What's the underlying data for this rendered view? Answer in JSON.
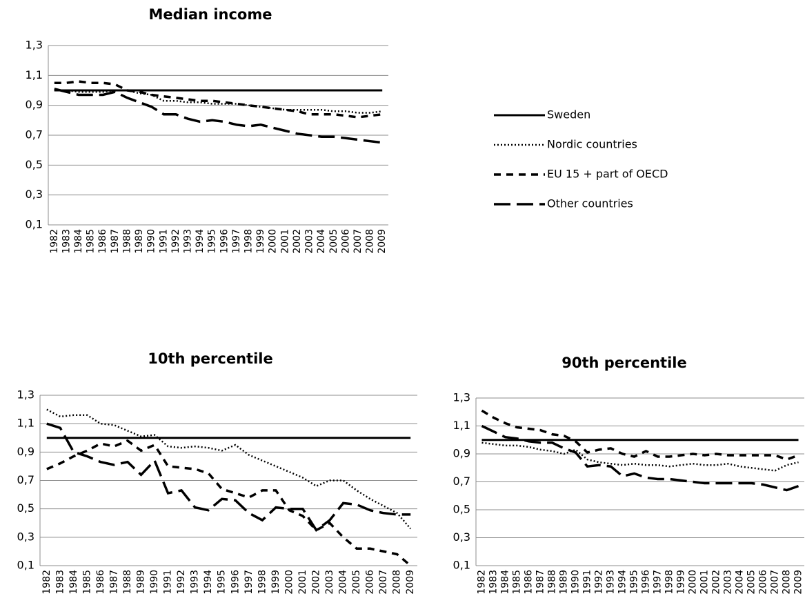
{
  "chart_data": [
    {
      "type": "line",
      "title": "Median income",
      "legend": "right",
      "grid": true,
      "categories": [
        "1982",
        "1983",
        "1984",
        "1985",
        "1986",
        "1987",
        "1988",
        "1989",
        "1990",
        "1991",
        "1992",
        "1993",
        "1994",
        "1995",
        "1996",
        "1997",
        "1998",
        "1999",
        "2000",
        "2001",
        "2002",
        "2003",
        "2004",
        "2005",
        "2006",
        "2007",
        "2008",
        "2009"
      ],
      "ylim": [
        0.1,
        1.3
      ],
      "yticks": [
        {
          "value": 0.1,
          "label": "0,1"
        },
        {
          "value": 0.3,
          "label": "0,3"
        },
        {
          "value": 0.5,
          "label": "0,5"
        },
        {
          "value": 0.7,
          "label": "0,7"
        },
        {
          "value": 0.9,
          "label": "0,9"
        },
        {
          "value": 1.1,
          "label": "1,1"
        },
        {
          "value": 1.3,
          "label": "1,3"
        }
      ],
      "series": [
        {
          "name": "Sweden",
          "color": "#000000",
          "dash": "solid",
          "values": [
            1,
            1,
            1,
            1,
            1,
            1,
            1,
            1,
            1,
            1,
            1,
            1,
            1,
            1,
            1,
            1,
            1,
            1,
            1,
            1,
            1,
            1,
            1,
            1,
            1,
            1,
            1,
            1
          ]
        },
        {
          "name": "Nordic countries",
          "color": "#000000",
          "dash": "dotted",
          "values": [
            1.0,
            1.0,
            0.99,
            0.99,
            0.99,
            1.0,
            1.0,
            0.98,
            0.97,
            0.93,
            0.93,
            0.92,
            0.92,
            0.91,
            0.91,
            0.91,
            0.9,
            0.89,
            0.88,
            0.87,
            0.87,
            0.87,
            0.87,
            0.86,
            0.86,
            0.85,
            0.85,
            0.86
          ]
        },
        {
          "name": "EU 15 + part of OECD",
          "color": "#000000",
          "dash": "dashed",
          "values": [
            1.05,
            1.05,
            1.06,
            1.05,
            1.05,
            1.04,
            1.0,
            0.99,
            0.97,
            0.96,
            0.95,
            0.94,
            0.93,
            0.93,
            0.92,
            0.91,
            0.9,
            0.89,
            0.88,
            0.87,
            0.86,
            0.84,
            0.84,
            0.84,
            0.83,
            0.82,
            0.83,
            0.84
          ]
        },
        {
          "name": "Other countries",
          "color": "#000000",
          "dash": "longdash",
          "values": [
            1.01,
            0.99,
            0.97,
            0.97,
            0.97,
            0.99,
            0.95,
            0.92,
            0.89,
            0.84,
            0.84,
            0.81,
            0.79,
            0.8,
            0.79,
            0.77,
            0.76,
            0.77,
            0.75,
            0.73,
            0.71,
            0.7,
            0.69,
            0.69,
            0.68,
            0.67,
            0.66,
            0.65
          ]
        }
      ]
    },
    {
      "type": "line",
      "title": "10th percentile",
      "grid": true,
      "categories": [
        "1982",
        "1983",
        "1984",
        "1985",
        "1986",
        "1987",
        "1988",
        "1989",
        "1990",
        "1991",
        "1992",
        "1993",
        "1994",
        "1995",
        "1996",
        "1997",
        "1998",
        "1999",
        "2000",
        "2001",
        "2002",
        "2003",
        "2004",
        "2005",
        "2006",
        "2007",
        "2008",
        "2009"
      ],
      "ylim": [
        0.1,
        1.3
      ],
      "yticks": [
        {
          "value": 0.1,
          "label": "0,1"
        },
        {
          "value": 0.3,
          "label": "0,3"
        },
        {
          "value": 0.5,
          "label": "0,5"
        },
        {
          "value": 0.7,
          "label": "0,7"
        },
        {
          "value": 0.9,
          "label": "0,9"
        },
        {
          "value": 1.1,
          "label": "1,1"
        },
        {
          "value": 1.3,
          "label": "1,3"
        }
      ],
      "series": [
        {
          "color": "#000000",
          "dash": "solid",
          "values": [
            1,
            1,
            1,
            1,
            1,
            1,
            1,
            1,
            1,
            1,
            1,
            1,
            1,
            1,
            1,
            1,
            1,
            1,
            1,
            1,
            1,
            1,
            1,
            1,
            1,
            1,
            1,
            1
          ]
        },
        {
          "color": "#000000",
          "dash": "dotted",
          "values": [
            1.2,
            1.15,
            1.16,
            1.16,
            1.1,
            1.09,
            1.05,
            1.01,
            1.02,
            0.94,
            0.93,
            0.94,
            0.93,
            0.91,
            0.95,
            0.88,
            0.84,
            0.8,
            0.76,
            0.72,
            0.66,
            0.7,
            0.7,
            0.63,
            0.57,
            0.52,
            0.47,
            0.36
          ]
        },
        {
          "color": "#000000",
          "dash": "dashed",
          "values": [
            0.78,
            0.82,
            0.87,
            0.91,
            0.96,
            0.94,
            0.98,
            0.91,
            0.95,
            0.8,
            0.79,
            0.78,
            0.75,
            0.64,
            0.61,
            0.58,
            0.63,
            0.63,
            0.49,
            0.45,
            0.35,
            0.4,
            0.3,
            0.22,
            0.22,
            0.2,
            0.18,
            0.1
          ]
        },
        {
          "color": "#000000",
          "dash": "longdash",
          "values": [
            1.1,
            1.07,
            0.9,
            0.87,
            0.83,
            0.81,
            0.83,
            0.74,
            0.84,
            0.61,
            0.63,
            0.51,
            0.49,
            0.57,
            0.56,
            0.47,
            0.42,
            0.51,
            0.5,
            0.5,
            0.35,
            0.42,
            0.54,
            0.53,
            0.49,
            0.47,
            0.46,
            0.46
          ]
        }
      ]
    },
    {
      "type": "line",
      "title": "90th percentile",
      "grid": true,
      "categories": [
        "1982",
        "1983",
        "1984",
        "1985",
        "1986",
        "1987",
        "1988",
        "1989",
        "1990",
        "1991",
        "1992",
        "1993",
        "1994",
        "1995",
        "1996",
        "1997",
        "1998",
        "1999",
        "2000",
        "2001",
        "2002",
        "2003",
        "2004",
        "2005",
        "2006",
        "2007",
        "2008",
        "2009"
      ],
      "ylim": [
        0.1,
        1.3
      ],
      "yticks": [
        {
          "value": 0.1,
          "label": "0,1"
        },
        {
          "value": 0.3,
          "label": "0,3"
        },
        {
          "value": 0.5,
          "label": "0,5"
        },
        {
          "value": 0.7,
          "label": "0,7"
        },
        {
          "value": 0.9,
          "label": "0,9"
        },
        {
          "value": 1.1,
          "label": "1,1"
        },
        {
          "value": 1.3,
          "label": "1,3"
        }
      ],
      "series": [
        {
          "color": "#000000",
          "dash": "solid",
          "values": [
            1,
            1,
            1,
            1,
            1,
            1,
            1,
            1,
            1,
            1,
            1,
            1,
            1,
            1,
            1,
            1,
            1,
            1,
            1,
            1,
            1,
            1,
            1,
            1,
            1,
            1,
            1,
            1
          ]
        },
        {
          "color": "#000000",
          "dash": "dotted",
          "values": [
            0.98,
            0.97,
            0.96,
            0.96,
            0.95,
            0.93,
            0.92,
            0.9,
            0.93,
            0.86,
            0.84,
            0.83,
            0.82,
            0.83,
            0.82,
            0.82,
            0.81,
            0.82,
            0.83,
            0.82,
            0.82,
            0.83,
            0.81,
            0.8,
            0.79,
            0.78,
            0.82,
            0.84
          ]
        },
        {
          "color": "#000000",
          "dash": "dashed",
          "values": [
            1.21,
            1.16,
            1.12,
            1.09,
            1.08,
            1.07,
            1.04,
            1.03,
            0.99,
            0.91,
            0.93,
            0.94,
            0.9,
            0.88,
            0.92,
            0.88,
            0.88,
            0.89,
            0.9,
            0.89,
            0.9,
            0.89,
            0.89,
            0.89,
            0.89,
            0.89,
            0.86,
            0.89
          ]
        },
        {
          "color": "#000000",
          "dash": "longdash",
          "values": [
            1.1,
            1.06,
            1.02,
            1.01,
            0.99,
            0.98,
            0.98,
            0.94,
            0.91,
            0.81,
            0.82,
            0.81,
            0.74,
            0.76,
            0.73,
            0.72,
            0.72,
            0.71,
            0.7,
            0.69,
            0.69,
            0.69,
            0.69,
            0.69,
            0.68,
            0.66,
            0.64,
            0.67
          ]
        }
      ]
    }
  ]
}
